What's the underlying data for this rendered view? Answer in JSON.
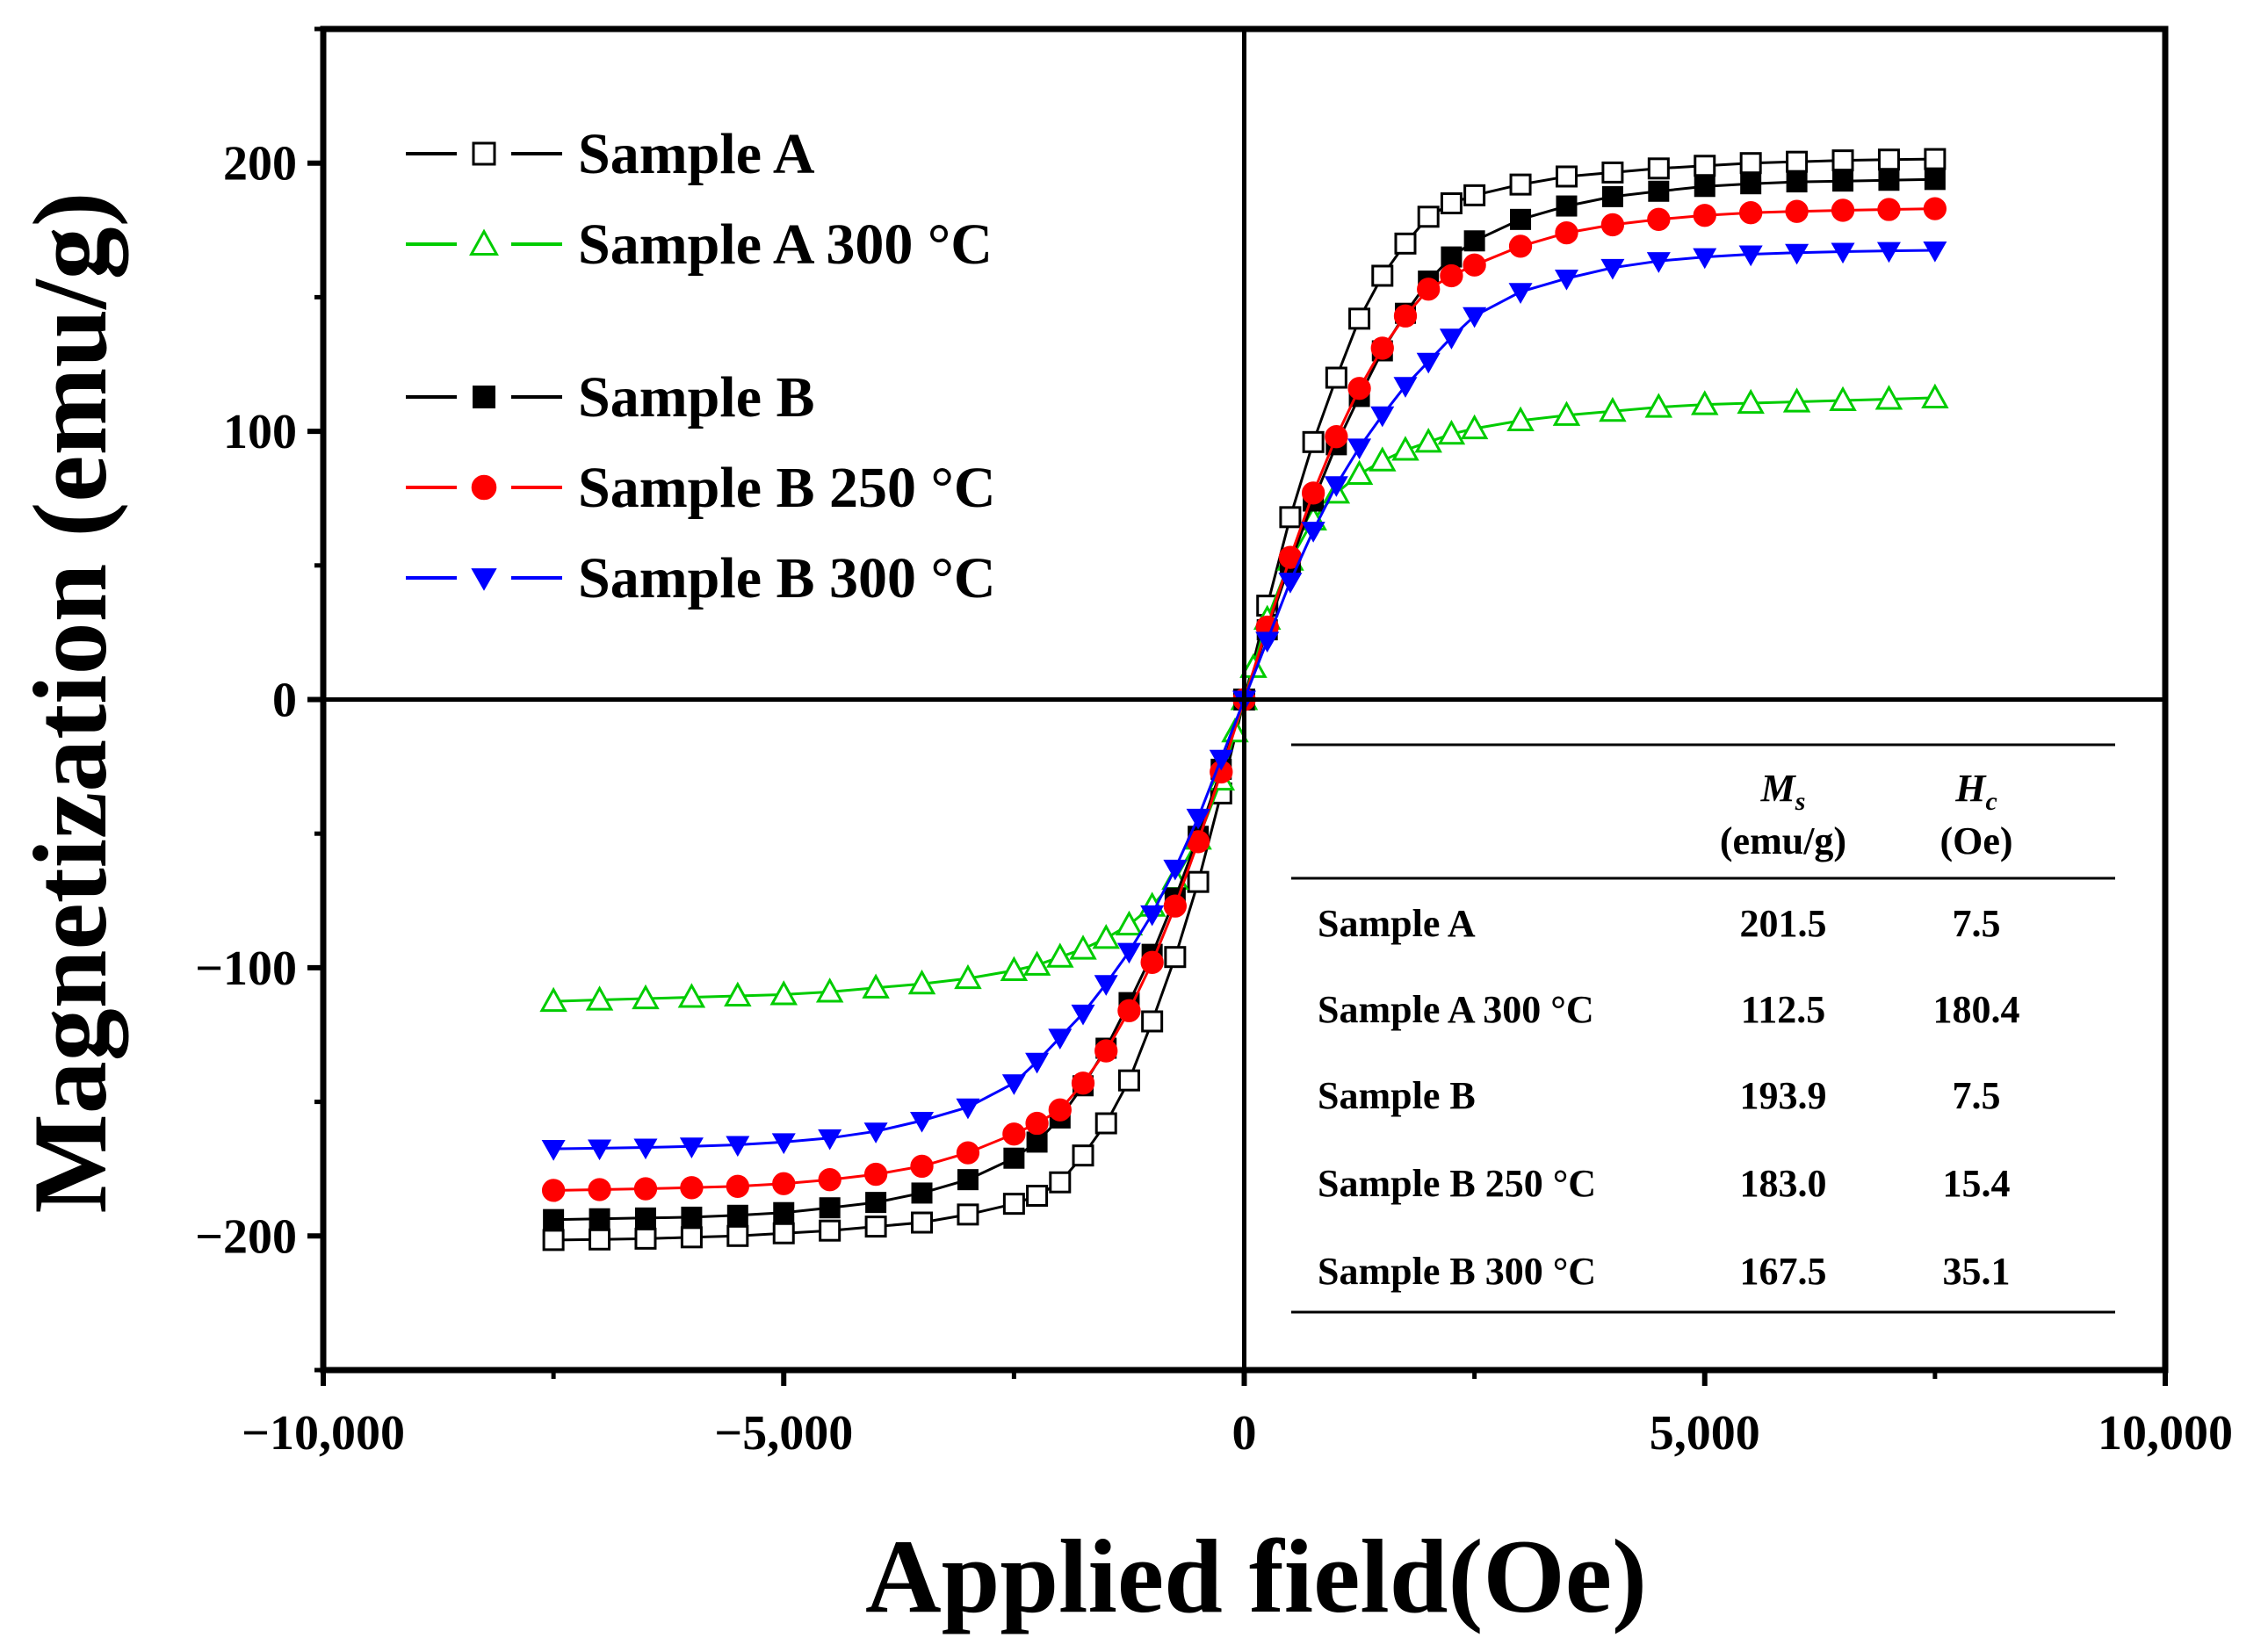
{
  "chart_data": {
    "type": "scatter",
    "title": "",
    "xlabel": "Applied field(Oe)",
    "ylabel": "Magnetization (emu/g)",
    "xlim": [
      -10000,
      10000
    ],
    "ylim": [
      -250,
      250
    ],
    "xticks": [
      -10000,
      -5000,
      0,
      5000,
      10000
    ],
    "xtick_labels": [
      "−10,000",
      "−5,000",
      "0",
      "5,000",
      "10,000"
    ],
    "yticks": [
      -200,
      -100,
      0,
      100,
      200
    ],
    "ytick_labels": [
      "−200",
      "−100",
      "0",
      "100",
      "200"
    ],
    "grid": false,
    "legend_position": "top-left",
    "series": [
      {
        "name": "Sample A",
        "color": "#000000",
        "marker": "square-open",
        "values_x": [
          -7500,
          -7000,
          -6500,
          -6000,
          -5500,
          -5000,
          -4500,
          -4000,
          -3500,
          -3000,
          -2500,
          -2250,
          -2000,
          -1750,
          -1500,
          -1250,
          -1000,
          -750,
          -500,
          -250,
          0,
          250,
          500,
          750,
          1000,
          1250,
          1500,
          1750,
          2000,
          2250,
          2500,
          3000,
          3500,
          4000,
          4500,
          5000,
          5500,
          6000,
          6500,
          7000,
          7500
        ],
        "values_y": [
          -201.5,
          -201.3,
          -201,
          -200.5,
          -200,
          -199,
          -198,
          -196.5,
          -195,
          -192,
          -188,
          -185,
          -180,
          -170,
          -158,
          -142,
          -120,
          -96,
          -68,
          -35,
          0,
          35,
          68,
          96,
          120,
          142,
          158,
          170,
          180,
          185,
          188,
          192,
          195,
          196.5,
          198,
          199,
          200,
          200.5,
          201,
          201.3,
          201.5
        ],
        "Ms": "201.5",
        "Hc": "7.5"
      },
      {
        "name": "Sample A 300 °C",
        "color": "#00cc00",
        "marker": "triangle-open",
        "values_x": [
          -7500,
          -7000,
          -6500,
          -6000,
          -5500,
          -5000,
          -4500,
          -4000,
          -3500,
          -3000,
          -2500,
          -2250,
          -2000,
          -1750,
          -1500,
          -1250,
          -1000,
          -750,
          -500,
          -250,
          -100,
          0,
          100,
          250,
          500,
          750,
          1000,
          1250,
          1500,
          1750,
          2000,
          2250,
          2500,
          3000,
          3500,
          4000,
          4500,
          5000,
          5500,
          6000,
          6500,
          7000,
          7500
        ],
        "values_y": [
          -112.5,
          -112,
          -111.5,
          -111,
          -110.5,
          -110,
          -109,
          -107.5,
          -106,
          -104,
          -101,
          -99,
          -96,
          -93,
          -89,
          -84,
          -77,
          -67,
          -52,
          -30,
          -12,
          0,
          12,
          30,
          52,
          67,
          77,
          84,
          89,
          93,
          96,
          99,
          101,
          104,
          106,
          107.5,
          109,
          110,
          110.5,
          111,
          111.5,
          112,
          112.5
        ],
        "Ms": "112.5",
        "Hc": "180.4"
      },
      {
        "name": "Sample B",
        "color": "#000000",
        "marker": "square-filled",
        "values_x": [
          -7500,
          -7000,
          -6500,
          -6000,
          -5500,
          -5000,
          -4500,
          -4000,
          -3500,
          -3000,
          -2500,
          -2250,
          -2000,
          -1750,
          -1500,
          -1250,
          -1000,
          -750,
          -500,
          -250,
          0,
          250,
          500,
          750,
          1000,
          1250,
          1500,
          1750,
          2000,
          2250,
          2500,
          3000,
          3500,
          4000,
          4500,
          5000,
          5500,
          6000,
          6500,
          7000,
          7500
        ],
        "values_y": [
          -193.9,
          -193.6,
          -193.3,
          -193,
          -192.3,
          -191.3,
          -189.5,
          -187.5,
          -184,
          -179,
          -171,
          -165,
          -156,
          -144,
          -130,
          -113,
          -95,
          -74,
          -51,
          -26,
          0,
          26,
          51,
          74,
          95,
          113,
          130,
          144,
          156,
          165,
          171,
          179,
          184,
          187.5,
          189.5,
          191.3,
          192.3,
          193,
          193.3,
          193.6,
          193.9
        ],
        "Ms": "193.9",
        "Hc": "7.5"
      },
      {
        "name": "Sample B 250 °C",
        "color": "#ff0000",
        "marker": "circle-filled",
        "values_x": [
          -7500,
          -7000,
          -6500,
          -6000,
          -5500,
          -5000,
          -4500,
          -4000,
          -3500,
          -3000,
          -2500,
          -2250,
          -2000,
          -1750,
          -1500,
          -1250,
          -1000,
          -750,
          -500,
          -250,
          0,
          250,
          500,
          750,
          1000,
          1250,
          1500,
          1750,
          2000,
          2250,
          2500,
          3000,
          3500,
          4000,
          4500,
          5000,
          5500,
          6000,
          6500,
          7000,
          7500
        ],
        "values_y": [
          -183,
          -182.7,
          -182.4,
          -182,
          -181.5,
          -180.5,
          -179,
          -177,
          -174,
          -169,
          -162,
          -158,
          -153,
          -143,
          -131,
          -116,
          -98,
          -77,
          -53,
          -27,
          0,
          27,
          53,
          77,
          98,
          116,
          131,
          143,
          153,
          158,
          162,
          169,
          174,
          177,
          179,
          180.5,
          181.5,
          182,
          182.4,
          182.7,
          183
        ],
        "Ms": "183.0",
        "Hc": "15.4"
      },
      {
        "name": "Sample B 300 °C",
        "color": "#0000ff",
        "marker": "triangle-down-filled",
        "values_x": [
          -7500,
          -7000,
          -6500,
          -6000,
          -5500,
          -5000,
          -4500,
          -4000,
          -3500,
          -3000,
          -2500,
          -2250,
          -2000,
          -1750,
          -1500,
          -1250,
          -1000,
          -750,
          -500,
          -250,
          0,
          250,
          500,
          750,
          1000,
          1250,
          1500,
          1750,
          2000,
          2250,
          2500,
          3000,
          3500,
          4000,
          4500,
          5000,
          5500,
          6000,
          6500,
          7000,
          7500
        ],
        "values_y": [
          -167.5,
          -167.3,
          -167,
          -166.6,
          -166,
          -165,
          -163.5,
          -161,
          -157,
          -152,
          -143,
          -135,
          -126,
          -117,
          -106,
          -94,
          -80,
          -63,
          -44,
          -22,
          0,
          22,
          44,
          63,
          80,
          94,
          106,
          117,
          126,
          135,
          143,
          152,
          157,
          161,
          163.5,
          165,
          166,
          166.6,
          167,
          167.3,
          167.5
        ],
        "Ms": "167.5",
        "Hc": "35.1"
      }
    ],
    "inset_table": {
      "header_ms_symbol": "M",
      "header_ms_sub": "s",
      "header_ms_unit": "(emu/g)",
      "header_hc_symbol": "H",
      "header_hc_sub": "c",
      "header_hc_unit": "(Oe)",
      "rows": [
        {
          "label": "Sample A",
          "ms": "201.5",
          "hc": "7.5"
        },
        {
          "label": "Sample A 300 °C",
          "ms": "112.5",
          "hc": "180.4"
        },
        {
          "label": "Sample B",
          "ms": "193.9",
          "hc": "7.5"
        },
        {
          "label": "Sample B 250 °C",
          "ms": "183.0",
          "hc": "15.4"
        },
        {
          "label": "Sample B 300 °C",
          "ms": "167.5",
          "hc": "35.1"
        }
      ]
    }
  }
}
